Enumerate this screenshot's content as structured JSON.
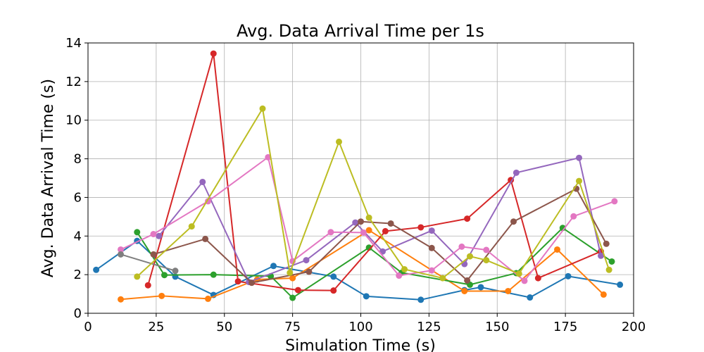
{
  "chart_data": {
    "type": "line",
    "title": "Avg. Data Arrival Time per 1s",
    "xlabel": "Simulation Time (s)",
    "ylabel": "Avg. Data Arrival Time (s)",
    "xlim": [
      0,
      200
    ],
    "ylim": [
      0,
      14
    ],
    "xticks": [
      0,
      25,
      50,
      75,
      100,
      125,
      150,
      175,
      200
    ],
    "yticks": [
      0,
      2,
      4,
      6,
      8,
      10,
      12,
      14
    ],
    "grid": true,
    "series": [
      {
        "color": "#1f77b4",
        "points": [
          [
            3,
            2.25
          ],
          [
            18,
            3.75
          ],
          [
            32,
            1.9
          ],
          [
            46,
            0.95
          ],
          [
            68,
            2.45
          ],
          [
            90,
            1.9
          ],
          [
            102,
            0.88
          ],
          [
            122,
            0.7
          ],
          [
            138,
            1.2
          ],
          [
            144,
            1.35
          ],
          [
            162,
            0.82
          ],
          [
            176,
            1.92
          ],
          [
            195,
            1.48
          ]
        ]
      },
      {
        "color": "#ff7f0e",
        "points": [
          [
            12,
            0.72
          ],
          [
            27,
            0.9
          ],
          [
            44,
            0.75
          ],
          [
            62,
            1.75
          ],
          [
            75,
            1.82
          ],
          [
            103,
            4.3
          ],
          [
            138,
            1.15
          ],
          [
            154,
            1.15
          ],
          [
            172,
            3.3
          ],
          [
            189,
            0.97
          ]
        ]
      },
      {
        "color": "#2ca02c",
        "points": [
          [
            18,
            4.2
          ],
          [
            28,
            1.98
          ],
          [
            46,
            2.0
          ],
          [
            67,
            1.92
          ],
          [
            75,
            0.8
          ],
          [
            103,
            3.4
          ],
          [
            115,
            2.1
          ],
          [
            140,
            1.48
          ],
          [
            157,
            2.08
          ],
          [
            174,
            4.42
          ],
          [
            192,
            2.68
          ]
        ]
      },
      {
        "color": "#d62728",
        "points": [
          [
            22,
            1.45
          ],
          [
            46,
            13.45
          ],
          [
            55,
            1.65
          ],
          [
            77,
            1.2
          ],
          [
            90,
            1.18
          ],
          [
            109,
            4.25
          ],
          [
            122,
            4.45
          ],
          [
            139,
            4.9
          ],
          [
            155,
            6.9
          ],
          [
            165,
            1.82
          ],
          [
            188,
            3.2
          ]
        ]
      },
      {
        "color": "#9467bd",
        "points": [
          [
            26,
            4.0
          ],
          [
            42,
            6.8
          ],
          [
            59,
            1.62
          ],
          [
            80,
            2.75
          ],
          [
            98,
            4.7
          ],
          [
            108,
            3.2
          ],
          [
            126,
            4.28
          ],
          [
            138,
            2.55
          ],
          [
            157,
            7.28
          ],
          [
            180,
            8.05
          ],
          [
            188,
            2.98
          ]
        ]
      },
      {
        "color": "#8c564b",
        "points": [
          [
            24,
            3.05
          ],
          [
            43,
            3.85
          ],
          [
            60,
            1.58
          ],
          [
            81,
            2.15
          ],
          [
            100,
            4.75
          ],
          [
            111,
            4.65
          ],
          [
            126,
            3.38
          ],
          [
            139,
            1.7
          ],
          [
            156,
            4.75
          ],
          [
            179,
            6.45
          ],
          [
            190,
            3.6
          ]
        ]
      },
      {
        "color": "#e377c2",
        "points": [
          [
            12,
            3.3
          ],
          [
            24,
            4.1
          ],
          [
            44,
            5.8
          ],
          [
            66,
            8.08
          ],
          [
            75,
            2.7
          ],
          [
            89,
            4.2
          ],
          [
            101,
            4.18
          ],
          [
            114,
            1.95
          ],
          [
            126,
            2.22
          ],
          [
            137,
            3.45
          ],
          [
            146,
            3.28
          ],
          [
            160,
            1.68
          ],
          [
            178,
            5.02
          ],
          [
            193,
            5.8
          ]
        ]
      },
      {
        "color": "#7f7f7f",
        "points": [
          [
            12,
            3.05
          ],
          [
            32,
            2.2
          ]
        ]
      },
      {
        "color": "#bcbd22",
        "points": [
          [
            18,
            1.9
          ],
          [
            38,
            4.5
          ],
          [
            64,
            10.6
          ],
          [
            74,
            2.1
          ],
          [
            92,
            8.88
          ],
          [
            103,
            4.95
          ],
          [
            116,
            2.28
          ],
          [
            130,
            1.82
          ],
          [
            140,
            2.95
          ],
          [
            146,
            2.75
          ],
          [
            158,
            2.05
          ],
          [
            180,
            6.85
          ],
          [
            191,
            2.25
          ]
        ]
      }
    ]
  }
}
